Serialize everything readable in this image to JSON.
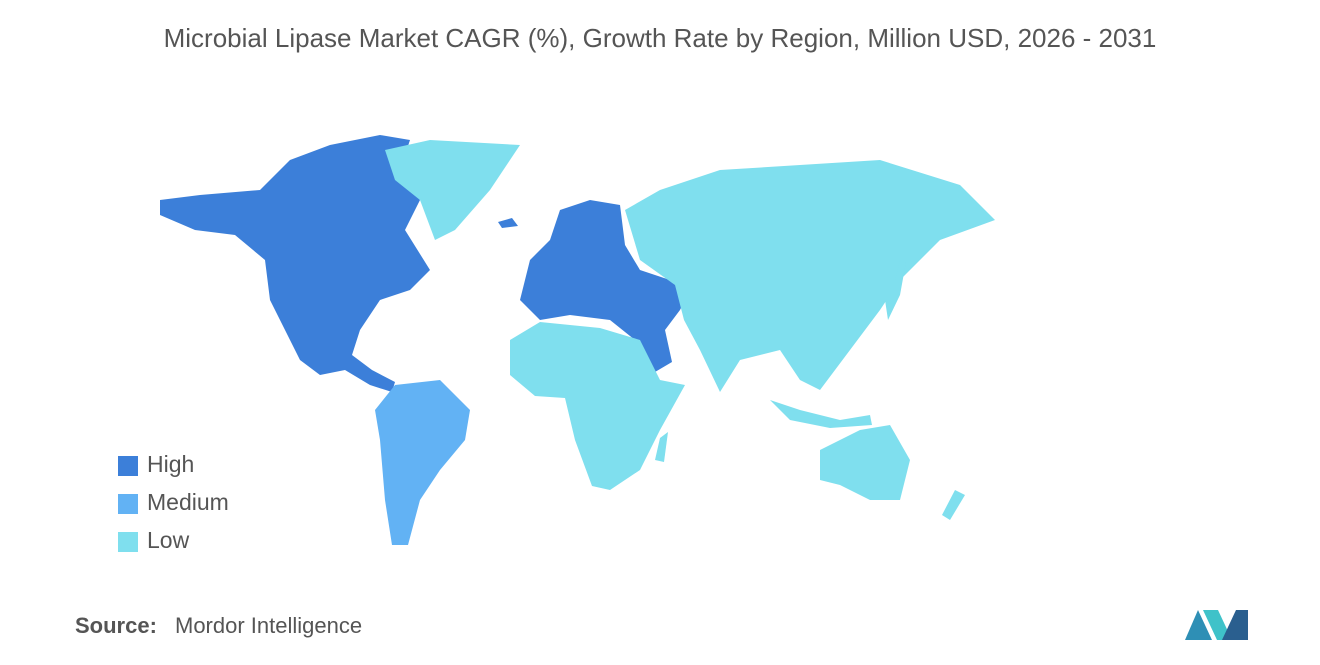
{
  "title": "Microbial Lipase Market CAGR (%), Growth Rate by Region, Million USD, 2026 - 2031",
  "legend": [
    {
      "label": "High",
      "color": "#3c7fd9"
    },
    {
      "label": "Medium",
      "color": "#62b2f4"
    },
    {
      "label": "Low",
      "color": "#7fdfee"
    }
  ],
  "source": {
    "label": "Source:",
    "text": "Mordor Intelligence"
  }
}
